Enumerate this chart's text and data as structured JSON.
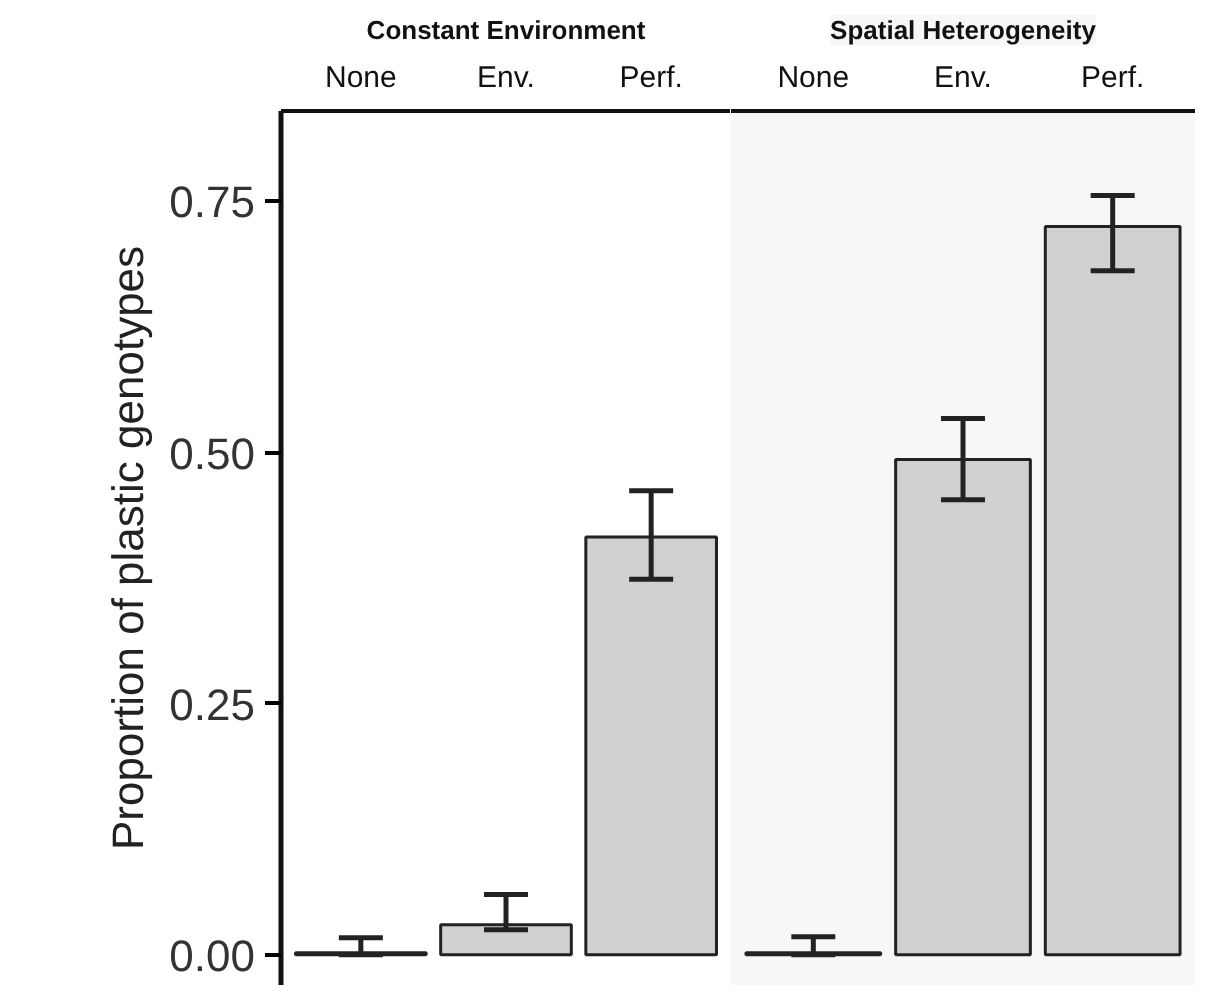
{
  "chart_data": [
    {
      "type": "bar",
      "title": "Constant Environment",
      "ylabel": "Proportion of plastic genotypes",
      "categories": [
        "None",
        "Env.",
        "Perf."
      ],
      "values": [
        0.002,
        0.03,
        0.416
      ],
      "errors": [
        [
          0,
          0.017
        ],
        [
          0.025,
          0.06
        ],
        [
          0.374,
          0.462
        ]
      ],
      "color": "#d0d1d3",
      "ylim": [
        -0.03,
        0.84
      ],
      "yticks": [
        {
          "value": 0,
          "label": "0.00"
        },
        0.25,
        {
          "value": 0.5,
          "label": "0.50"
        },
        0.75
      ],
      "grid": false
    },
    {
      "type": "bar",
      "title": "Spatial Heterogeneity",
      "categories": [
        "None",
        "Env.",
        "Perf."
      ],
      "values": [
        0.002,
        0.493,
        0.725
      ],
      "errors": [
        [
          0,
          0.018
        ],
        [
          0.453,
          0.534
        ],
        [
          0.681,
          0.756
        ]
      ],
      "color": "#d0d1d3",
      "ylim": [
        -0.03,
        0.84
      ],
      "tick_labels": "x",
      "grid": false
    }
  ]
}
